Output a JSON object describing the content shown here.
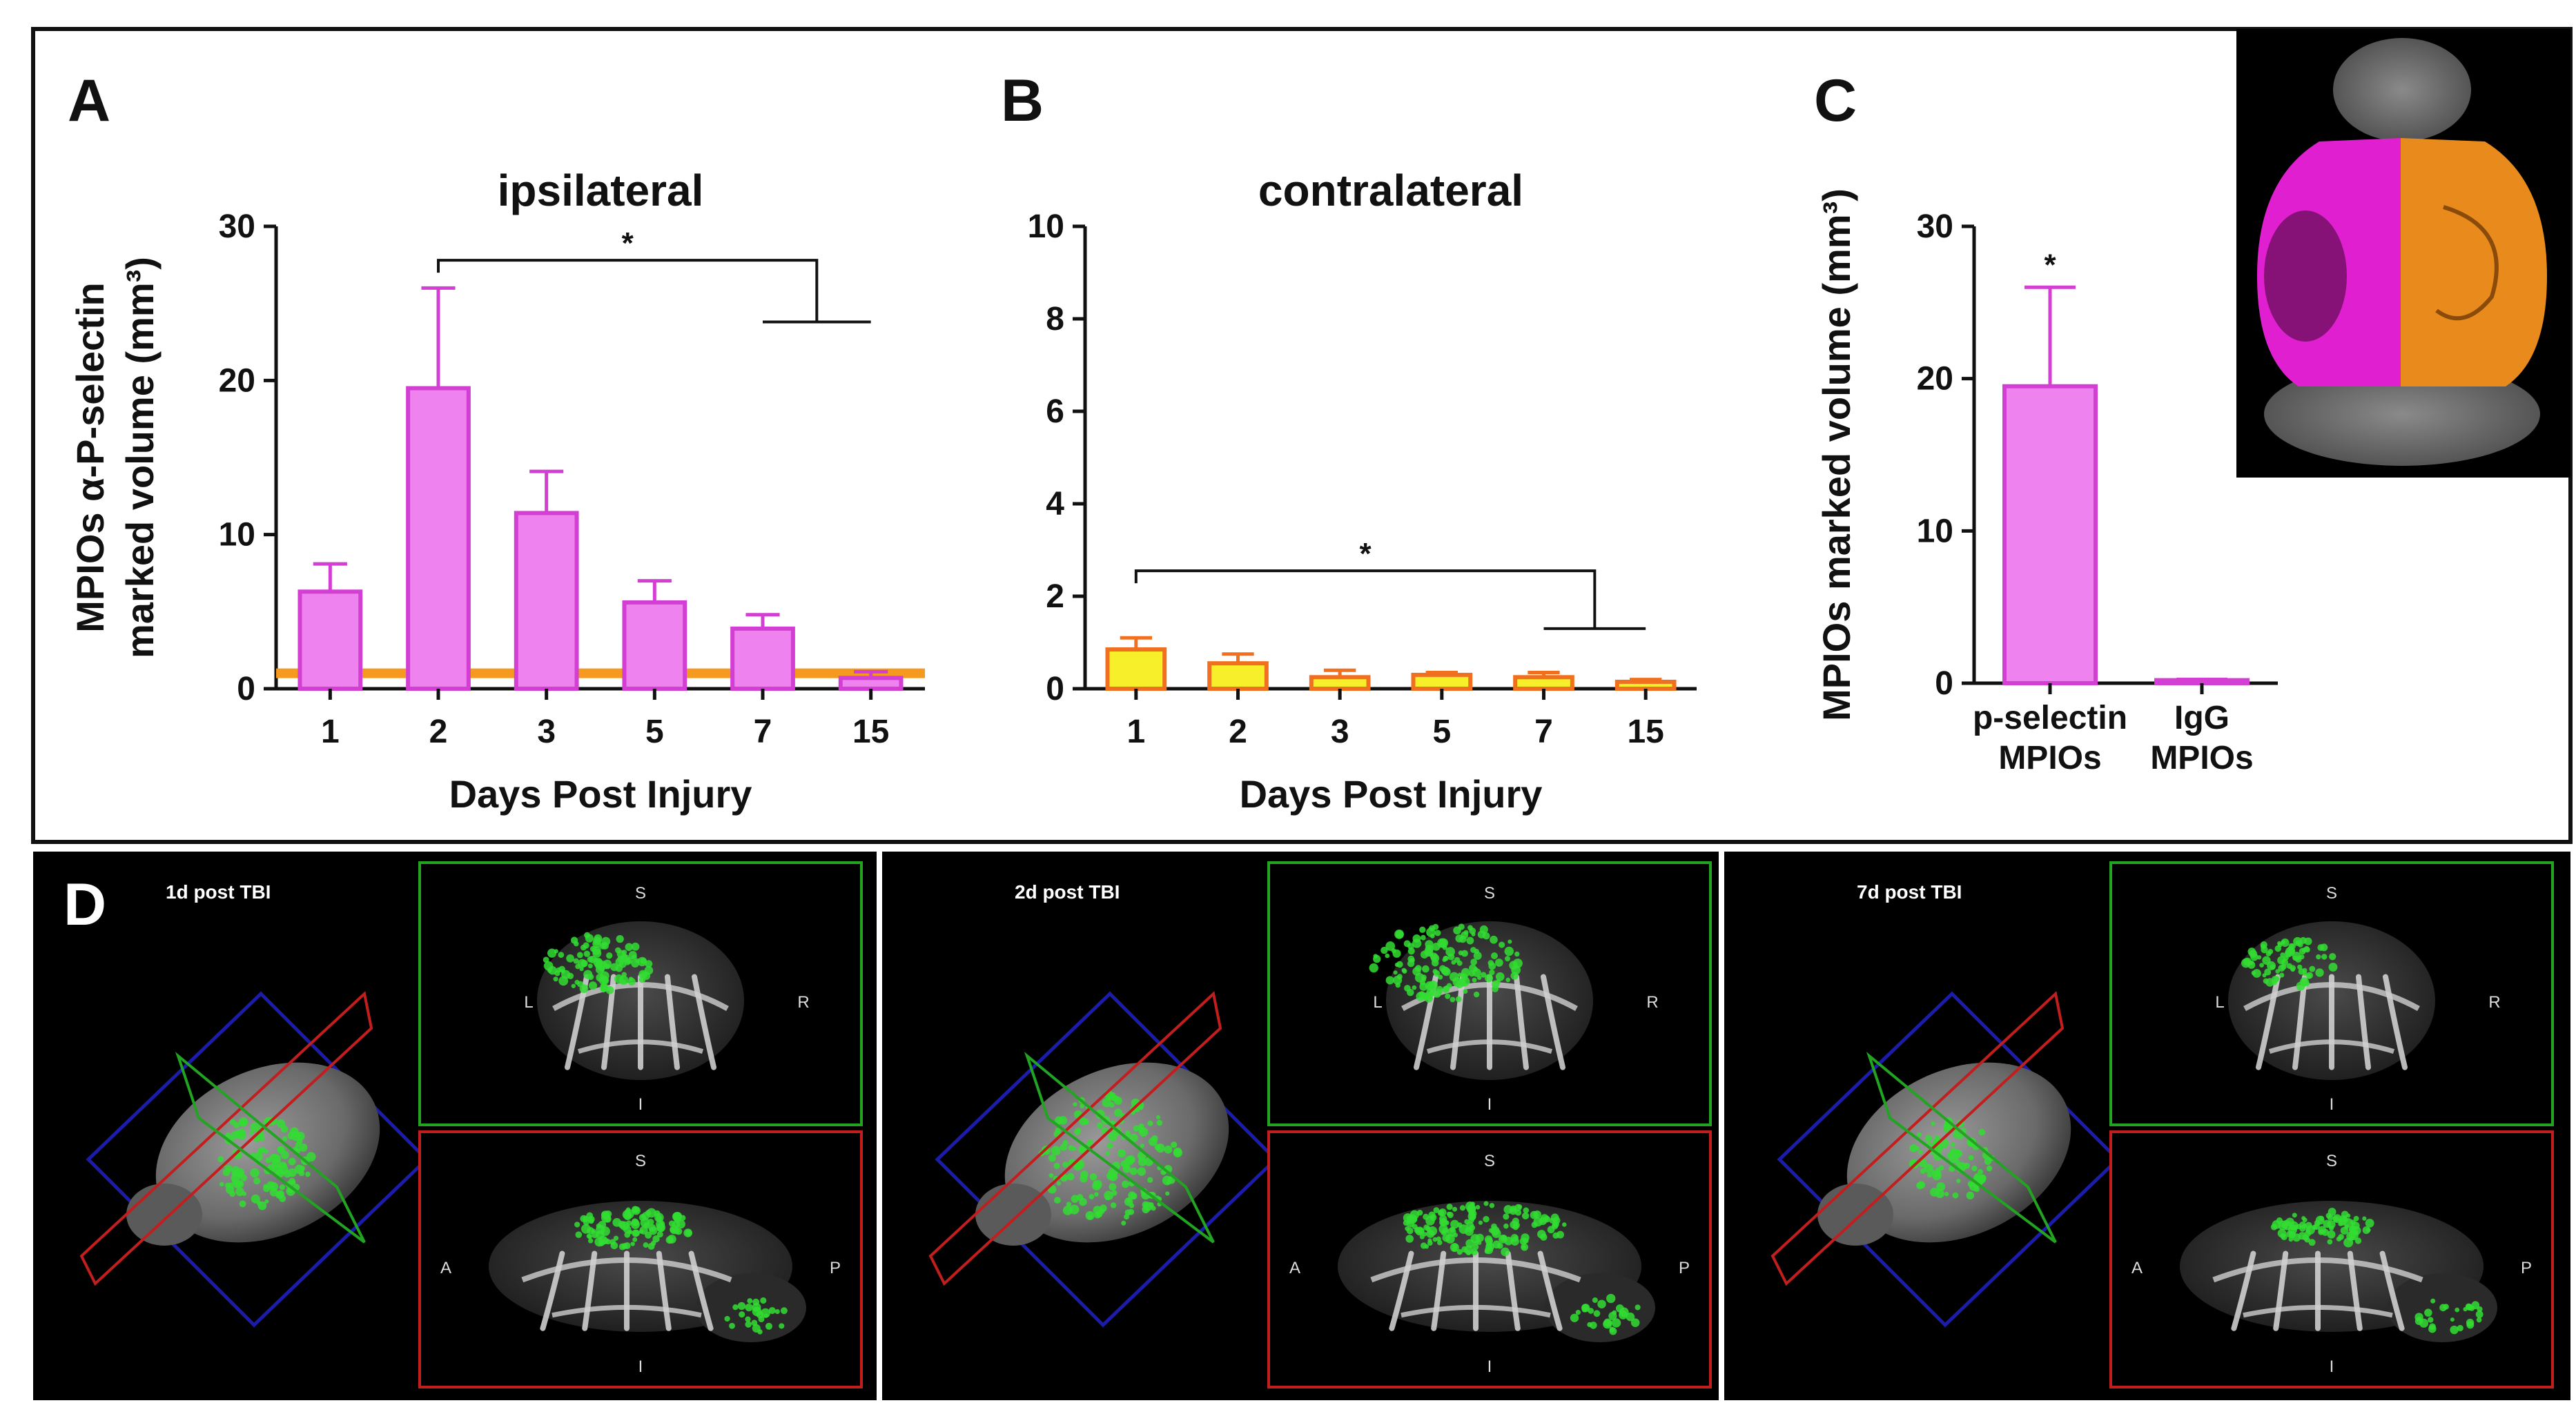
{
  "colors": {
    "magenta_bar": "#ee82ee",
    "magenta_edge": "#d23fd2",
    "orange_line": "#f59a1e",
    "yellow_bar": "#f7ef2a",
    "orange_edge": "#f07020",
    "cortex_magenta": "#e020d0",
    "cortex_orange": "#e88a1c",
    "green_frame": "#22a322",
    "red_frame": "#c21e1e",
    "blue_frame": "#1c1caa",
    "vessel_green": "#33dd33"
  },
  "panels": {
    "a_letter": "A",
    "b_letter": "B",
    "c_letter": "C",
    "d_letter": "D"
  },
  "chart_data": [
    {
      "id": "A",
      "type": "bar",
      "title": "ipsilateral",
      "ylabel_line1": "MPIOs α-P-selectin",
      "ylabel_line2": "marked volume (mm³)",
      "xlabel": "Days Post Injury",
      "categories": [
        "1",
        "2",
        "3",
        "5",
        "7",
        "15"
      ],
      "values": [
        6.3,
        19.5,
        11.4,
        5.6,
        3.9,
        0.7
      ],
      "errors": [
        1.8,
        6.5,
        2.7,
        1.4,
        0.9,
        0.4
      ],
      "ylim": [
        0,
        30
      ],
      "yticks": [
        "0",
        "10",
        "20",
        "30"
      ],
      "reference_line": 1.0,
      "significance": "*",
      "bar_color": "#ee82ee",
      "edge_color": "#d23fd2"
    },
    {
      "id": "B",
      "type": "bar",
      "title": "contralateral",
      "xlabel": "Days Post Injury",
      "categories": [
        "1",
        "2",
        "3",
        "5",
        "7",
        "15"
      ],
      "values": [
        0.85,
        0.55,
        0.25,
        0.3,
        0.25,
        0.15
      ],
      "errors": [
        0.25,
        0.2,
        0.15,
        0.05,
        0.1,
        0.05
      ],
      "ylim": [
        0,
        10
      ],
      "yticks": [
        "0",
        "2",
        "4",
        "6",
        "8",
        "10"
      ],
      "significance": "*",
      "bar_color": "#f7ef2a",
      "edge_color": "#f07020"
    },
    {
      "id": "C",
      "type": "bar",
      "ylabel": "MPIOs marked volume (mm³)",
      "categories": [
        "p-selectin MPIOs",
        "IgG MPIOs"
      ],
      "cat_lines": [
        [
          "p-selectin",
          "MPIOs"
        ],
        [
          "IgG",
          "MPIOs"
        ]
      ],
      "values": [
        19.5,
        0.2
      ],
      "errors": [
        6.5,
        0.05
      ],
      "ylim": [
        0,
        30
      ],
      "yticks": [
        "0",
        "10",
        "20",
        "30"
      ],
      "significance": "*",
      "bar_color": "#ee82ee",
      "edge_color": "#d23fd2"
    }
  ],
  "panel_d": {
    "timepoints": [
      {
        "label": "1d post TBI",
        "extent": 0.55
      },
      {
        "label": "2d post TBI",
        "extent": 1.0
      },
      {
        "label": "7d post TBI",
        "extent": 0.35
      }
    ],
    "coronal": {
      "top": "S",
      "left": "L",
      "right": "R",
      "bottom": "I"
    },
    "sagittal": {
      "top": "S",
      "left": "A",
      "right": "P",
      "bottom": "I"
    }
  }
}
